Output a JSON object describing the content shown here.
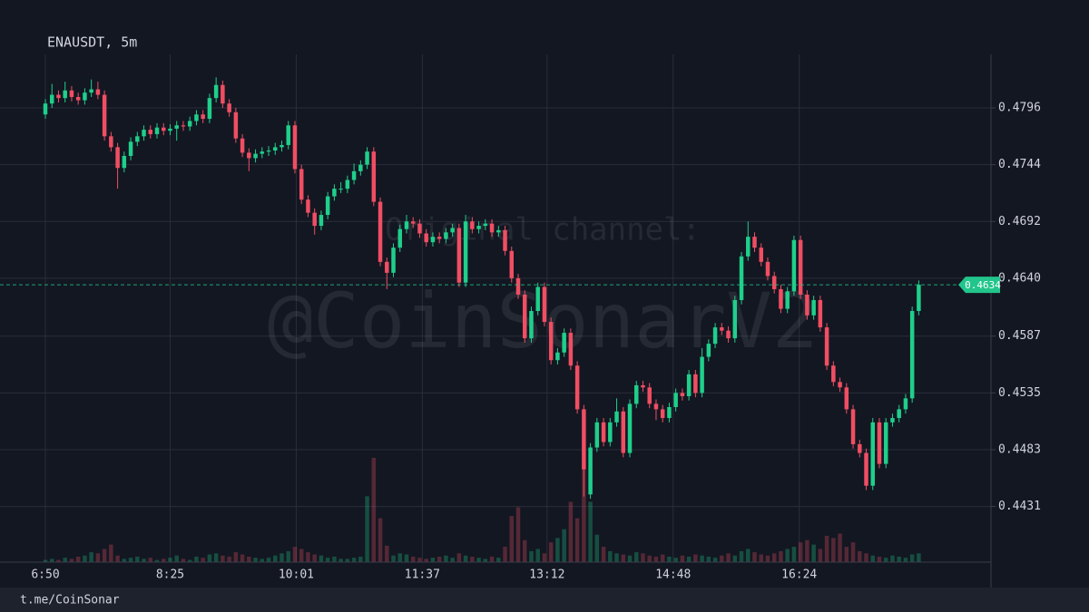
{
  "chart_data": {
    "type": "candlestick",
    "title": "ENAUSDT, 5m",
    "watermark": {
      "channel": "Original channel:",
      "handle": "@CoinSonarV2"
    },
    "footer": "t.me/CoinSonar",
    "up_color": "#1fcf8b",
    "down_color": "#f04e63",
    "grid": true,
    "x": [
      0,
      5,
      10,
      15,
      20,
      25,
      30,
      35,
      40,
      45,
      50,
      55,
      60,
      65,
      70,
      75,
      80,
      85,
      90,
      95,
      100,
      105,
      110,
      115,
      120,
      125,
      130,
      135,
      140,
      145,
      150,
      155,
      160,
      165,
      170,
      175,
      180,
      185,
      190,
      195,
      200,
      205,
      210,
      215,
      220,
      225,
      230,
      235,
      240,
      245,
      250,
      255,
      260,
      265,
      270,
      275,
      280,
      285,
      290,
      295,
      300,
      305,
      310,
      315,
      320,
      325,
      330,
      335,
      340,
      345,
      350,
      355,
      360,
      365,
      370,
      375,
      380,
      385,
      390,
      395,
      400,
      405,
      410,
      415,
      420,
      425,
      430,
      435,
      440,
      445,
      450,
      455,
      460,
      465,
      470,
      475,
      480,
      485,
      490,
      495,
      500,
      505,
      510,
      515,
      520,
      525,
      530,
      535,
      540,
      545,
      550,
      555,
      560,
      565,
      570,
      575,
      580,
      585,
      590,
      595,
      600,
      605,
      610,
      615,
      620,
      625,
      630,
      635,
      640,
      645,
      650,
      655,
      660,
      665
    ],
    "open": [
      0.479,
      0.48,
      0.4808,
      0.4805,
      0.4812,
      0.4806,
      0.4803,
      0.481,
      0.4813,
      0.4808,
      0.477,
      0.476,
      0.4741,
      0.4752,
      0.4765,
      0.477,
      0.4776,
      0.4772,
      0.4778,
      0.4775,
      0.4777,
      0.478,
      0.4779,
      0.4784,
      0.479,
      0.4786,
      0.4805,
      0.4817,
      0.48,
      0.4792,
      0.4768,
      0.4755,
      0.475,
      0.4754,
      0.4756,
      0.4757,
      0.476,
      0.4762,
      0.478,
      0.474,
      0.4712,
      0.47,
      0.4688,
      0.4698,
      0.4715,
      0.4722,
      0.4722,
      0.473,
      0.4738,
      0.4744,
      0.4756,
      0.471,
      0.4655,
      0.4645,
      0.4668,
      0.4685,
      0.4692,
      0.469,
      0.4681,
      0.4673,
      0.4678,
      0.4676,
      0.4682,
      0.4686,
      0.4636,
      0.4692,
      0.4685,
      0.4688,
      0.469,
      0.4682,
      0.4684,
      0.4665,
      0.464,
      0.4625,
      0.4585,
      0.461,
      0.4632,
      0.46,
      0.4565,
      0.4572,
      0.459,
      0.456,
      0.452,
      0.4442,
      0.4485,
      0.4508,
      0.449,
      0.4508,
      0.4518,
      0.448,
      0.4525,
      0.4542,
      0.454,
      0.4525,
      0.452,
      0.4512,
      0.4522,
      0.4535,
      0.4532,
      0.4552,
      0.4535,
      0.4568,
      0.458,
      0.4595,
      0.4592,
      0.4585,
      0.462,
      0.466,
      0.4678,
      0.4668,
      0.4655,
      0.4642,
      0.463,
      0.4612,
      0.4628,
      0.4675,
      0.4625,
      0.4606,
      0.462,
      0.4595,
      0.456,
      0.4545,
      0.454,
      0.452,
      0.4488,
      0.448,
      0.445,
      0.4508,
      0.447,
      0.4508,
      0.4512,
      0.452,
      0.453,
      0.461
    ],
    "high": [
      0.4804,
      0.4818,
      0.4812,
      0.482,
      0.4816,
      0.481,
      0.4814,
      0.4822,
      0.482,
      0.4812,
      0.4774,
      0.4764,
      0.4756,
      0.4769,
      0.4774,
      0.478,
      0.478,
      0.4782,
      0.4782,
      0.4781,
      0.4784,
      0.4784,
      0.4788,
      0.4794,
      0.4794,
      0.4809,
      0.4824,
      0.4821,
      0.4804,
      0.4796,
      0.4772,
      0.4759,
      0.4758,
      0.476,
      0.4761,
      0.4764,
      0.4766,
      0.4784,
      0.4784,
      0.4744,
      0.4716,
      0.4704,
      0.4702,
      0.4719,
      0.4726,
      0.4728,
      0.4734,
      0.4745,
      0.4748,
      0.476,
      0.476,
      0.4714,
      0.4659,
      0.4672,
      0.4689,
      0.4698,
      0.4696,
      0.4694,
      0.4685,
      0.4682,
      0.4682,
      0.4686,
      0.469,
      0.469,
      0.4698,
      0.4696,
      0.4692,
      0.4694,
      0.4694,
      0.4688,
      0.4688,
      0.4669,
      0.4644,
      0.4629,
      0.4614,
      0.4636,
      0.4636,
      0.4604,
      0.4576,
      0.4594,
      0.4594,
      0.4564,
      0.4524,
      0.4489,
      0.4512,
      0.4512,
      0.4512,
      0.453,
      0.4522,
      0.4529,
      0.4546,
      0.4546,
      0.4544,
      0.4529,
      0.4524,
      0.4526,
      0.4539,
      0.4539,
      0.4556,
      0.4556,
      0.4576,
      0.4584,
      0.4599,
      0.4599,
      0.4596,
      0.4624,
      0.4664,
      0.4692,
      0.4682,
      0.4672,
      0.4659,
      0.4646,
      0.4634,
      0.4632,
      0.4679,
      0.4679,
      0.4629,
      0.4624,
      0.4624,
      0.4599,
      0.4564,
      0.4549,
      0.4544,
      0.4524,
      0.4492,
      0.4484,
      0.4512,
      0.4512,
      0.4512,
      0.4516,
      0.4524,
      0.4534,
      0.4614,
      0.4638
    ],
    "low": [
      0.4786,
      0.4796,
      0.4801,
      0.4801,
      0.4802,
      0.4799,
      0.4799,
      0.4806,
      0.4804,
      0.4766,
      0.4756,
      0.4722,
      0.4737,
      0.4748,
      0.4761,
      0.4766,
      0.4768,
      0.4768,
      0.4771,
      0.4771,
      0.4766,
      0.4775,
      0.4775,
      0.478,
      0.4782,
      0.4782,
      0.4801,
      0.4796,
      0.4788,
      0.4764,
      0.4751,
      0.4738,
      0.4746,
      0.475,
      0.4752,
      0.4753,
      0.4756,
      0.4758,
      0.4736,
      0.4708,
      0.4696,
      0.468,
      0.4684,
      0.4694,
      0.4711,
      0.4718,
      0.4718,
      0.4726,
      0.4734,
      0.474,
      0.4706,
      0.4651,
      0.463,
      0.4641,
      0.4664,
      0.4681,
      0.4686,
      0.4677,
      0.4669,
      0.4669,
      0.4672,
      0.4672,
      0.4678,
      0.4632,
      0.4632,
      0.4681,
      0.4681,
      0.4684,
      0.4678,
      0.4678,
      0.4661,
      0.4636,
      0.4621,
      0.4581,
      0.4581,
      0.4606,
      0.4596,
      0.4561,
      0.4561,
      0.4568,
      0.4556,
      0.4516,
      0.444,
      0.4438,
      0.4481,
      0.4486,
      0.4486,
      0.4504,
      0.4476,
      0.4476,
      0.4521,
      0.4536,
      0.4521,
      0.451,
      0.4508,
      0.4508,
      0.4518,
      0.4528,
      0.4528,
      0.4531,
      0.4531,
      0.4564,
      0.4576,
      0.4588,
      0.4581,
      0.4581,
      0.4616,
      0.4656,
      0.4664,
      0.4651,
      0.4638,
      0.4626,
      0.4608,
      0.4608,
      0.4624,
      0.4621,
      0.4602,
      0.4602,
      0.4591,
      0.4556,
      0.4541,
      0.4536,
      0.4516,
      0.4484,
      0.4476,
      0.4446,
      0.4446,
      0.4466,
      0.4466,
      0.4504,
      0.4508,
      0.4516,
      0.4526,
      0.4606
    ],
    "close": [
      0.48,
      0.4808,
      0.4805,
      0.4812,
      0.4806,
      0.4803,
      0.481,
      0.4813,
      0.4808,
      0.477,
      0.476,
      0.4741,
      0.4752,
      0.4765,
      0.477,
      0.4776,
      0.4772,
      0.4778,
      0.4775,
      0.4777,
      0.478,
      0.4779,
      0.4784,
      0.479,
      0.4786,
      0.4805,
      0.4817,
      0.48,
      0.4792,
      0.4768,
      0.4755,
      0.475,
      0.4754,
      0.4756,
      0.4757,
      0.476,
      0.4762,
      0.478,
      0.474,
      0.4712,
      0.47,
      0.4688,
      0.4698,
      0.4715,
      0.4722,
      0.4722,
      0.473,
      0.4738,
      0.4744,
      0.4756,
      0.471,
      0.4655,
      0.4645,
      0.4668,
      0.4685,
      0.4692,
      0.469,
      0.4681,
      0.4673,
      0.4678,
      0.4676,
      0.4682,
      0.4686,
      0.4636,
      0.4692,
      0.4685,
      0.4688,
      0.469,
      0.4682,
      0.4684,
      0.4665,
      0.464,
      0.4625,
      0.4585,
      0.461,
      0.4632,
      0.46,
      0.4565,
      0.4572,
      0.459,
      0.456,
      0.452,
      0.4465,
      0.4485,
      0.4508,
      0.449,
      0.4508,
      0.4518,
      0.448,
      0.4525,
      0.4542,
      0.454,
      0.4525,
      0.452,
      0.4512,
      0.4522,
      0.4535,
      0.4532,
      0.4552,
      0.4535,
      0.4568,
      0.458,
      0.4595,
      0.4592,
      0.4585,
      0.462,
      0.466,
      0.4678,
      0.4668,
      0.4655,
      0.4642,
      0.463,
      0.4612,
      0.4628,
      0.4675,
      0.4625,
      0.4606,
      0.462,
      0.4595,
      0.456,
      0.4545,
      0.454,
      0.452,
      0.4488,
      0.448,
      0.445,
      0.4508,
      0.447,
      0.4508,
      0.4512,
      0.452,
      0.453,
      0.461,
      0.4634
    ],
    "volume": [
      2,
      3,
      2,
      4,
      3,
      5,
      6,
      9,
      8,
      12,
      16,
      6,
      3,
      4,
      5,
      3,
      4,
      2,
      3,
      4,
      6,
      3,
      2,
      5,
      4,
      7,
      8,
      6,
      5,
      9,
      7,
      5,
      4,
      3,
      4,
      6,
      8,
      10,
      14,
      12,
      9,
      7,
      6,
      4,
      5,
      3,
      3,
      4,
      5,
      60,
      95,
      40,
      15,
      6,
      8,
      7,
      5,
      4,
      3,
      4,
      5,
      6,
      4,
      8,
      6,
      5,
      4,
      3,
      5,
      4,
      14,
      42,
      50,
      20,
      10,
      12,
      8,
      18,
      22,
      30,
      55,
      40,
      90,
      55,
      25,
      14,
      10,
      8,
      7,
      6,
      9,
      8,
      6,
      5,
      7,
      5,
      4,
      6,
      5,
      7,
      6,
      5,
      4,
      6,
      8,
      6,
      10,
      12,
      9,
      7,
      6,
      8,
      10,
      12,
      14,
      18,
      20,
      16,
      12,
      24,
      22,
      26,
      14,
      18,
      10,
      8,
      6,
      5,
      4,
      6,
      5,
      4,
      7,
      8
    ],
    "last_price": 0.4634,
    "last_price_color": "#22c58b",
    "xlim": [
      0,
      720
    ],
    "xticks": [
      {
        "value": 0,
        "label": "6:50"
      },
      {
        "value": 95,
        "label": "8:25"
      },
      {
        "value": 191,
        "label": "10:01"
      },
      {
        "value": 287,
        "label": "11:37"
      },
      {
        "value": 382,
        "label": "13:12"
      },
      {
        "value": 478,
        "label": "14:48"
      },
      {
        "value": 574,
        "label": "16:24"
      }
    ],
    "ylim": [
      0.438,
      0.4845
    ],
    "yticks": [
      0.4431,
      0.4483,
      0.4535,
      0.4587,
      {
        "value": 0.464,
        "label": "0.4640"
      },
      0.4692,
      0.4744,
      0.4796
    ]
  }
}
